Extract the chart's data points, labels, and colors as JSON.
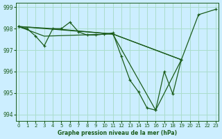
{
  "title": "Graphe pression niveau de la mer (hPa)",
  "bg_color": "#cceeff",
  "grid_color": "#aaddcc",
  "line_color": "#1a5c1a",
  "xlim": [
    -0.3,
    23.3
  ],
  "ylim": [
    993.7,
    999.2
  ],
  "yticks": [
    994,
    995,
    996,
    997,
    998,
    999
  ],
  "xtick_labels": [
    "0",
    "1",
    "2",
    "3",
    "4",
    "5",
    "6",
    "7",
    "8",
    "9",
    "10",
    "11",
    "12",
    "13",
    "14",
    "15",
    "16",
    "17",
    "18",
    "19",
    "20",
    "21",
    "22",
    "23"
  ],
  "xticks": [
    0,
    1,
    2,
    3,
    4,
    5,
    6,
    7,
    8,
    9,
    10,
    11,
    12,
    13,
    14,
    15,
    16,
    17,
    18,
    19,
    20,
    21,
    22,
    23
  ],
  "series": [
    {
      "x": [
        0,
        1,
        2,
        3,
        4,
        5,
        6,
        7,
        8,
        9,
        10,
        11,
        12,
        13,
        14,
        15,
        16,
        17,
        18,
        19
      ],
      "y": [
        998.1,
        998.0,
        997.65,
        997.2,
        998.0,
        998.0,
        998.3,
        997.85,
        997.7,
        997.7,
        997.75,
        997.8,
        996.7,
        995.6,
        995.05,
        994.3,
        994.2,
        996.0,
        994.95,
        996.55
      ],
      "marker": true
    },
    {
      "x": [
        0,
        11,
        16,
        19,
        21,
        23
      ],
      "y": [
        998.1,
        997.75,
        994.2,
        996.55,
        998.65,
        998.9
      ],
      "marker": true
    },
    {
      "x": [
        0,
        3,
        11,
        19
      ],
      "y": [
        998.1,
        997.65,
        997.75,
        996.55
      ],
      "marker": false
    },
    {
      "x": [
        0,
        4,
        11,
        19
      ],
      "y": [
        998.1,
        998.0,
        997.75,
        996.55
      ],
      "marker": false
    }
  ]
}
